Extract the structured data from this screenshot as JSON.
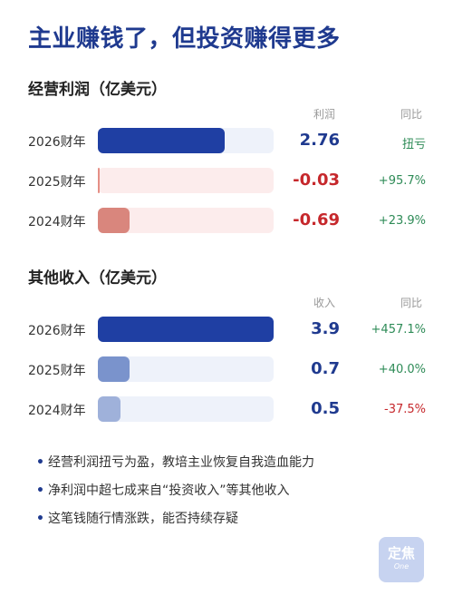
{
  "title": "主业赚钱了，但投资赚得更多",
  "colors": {
    "title": "#1f3a8f",
    "positive_value": "#1f3a8f",
    "negative_value": "#c6282c",
    "positive_change": "#2e8b57",
    "negative_change": "#c6282c",
    "bar_dark_blue": "#1f3fa3",
    "bar_light_blue": "#7a93cc",
    "bar_pale_blue": "#9fb1da",
    "track_blue": "#eef2fa",
    "bar_red": "#d9867d",
    "track_red": "#fcecec"
  },
  "chart_data": [
    {
      "type": "bar",
      "title": "经营利润（亿美元）",
      "value_header": "利润",
      "change_header": "同比",
      "categories": [
        "2026财年",
        "2025财年",
        "2024财年"
      ],
      "values": [
        2.76,
        -0.03,
        -0.69
      ],
      "value_labels": [
        "2.76",
        "-0.03",
        "-0.69"
      ],
      "changes": [
        "扭亏",
        "+95.7%",
        "+23.9%"
      ],
      "scale_max": 2.76,
      "magnitude_display": [
        0.72,
        0.01,
        0.18
      ]
    },
    {
      "type": "bar",
      "title": "其他收入（亿美元）",
      "value_header": "收入",
      "change_header": "同比",
      "categories": [
        "2026财年",
        "2025财年",
        "2024财年"
      ],
      "values": [
        3.9,
        0.7,
        0.5
      ],
      "value_labels": [
        "3.9",
        "0.7",
        "0.5"
      ],
      "changes": [
        "+457.1%",
        "+40.0%",
        "-37.5%"
      ],
      "scale_max": 3.9
    }
  ],
  "notes": [
    "经营利润扭亏为盈，教培主业恢复自我造血能力",
    "净利润中超七成来自“投资收入”等其他收入",
    "这笔钱随行情涨跌，能否持续存疑"
  ],
  "logo": {
    "main": "定焦",
    "sub": "One"
  }
}
